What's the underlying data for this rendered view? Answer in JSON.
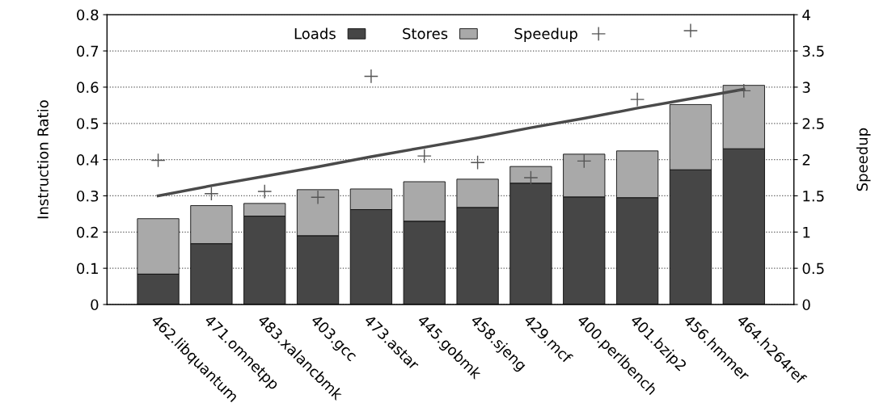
{
  "chart_data": {
    "type": "bar",
    "stacked": true,
    "ylabel": "Instruction Ratio",
    "y2label": "Speedup",
    "categories": [
      "462.libquantum",
      "471.omnetpp",
      "483.xalancbmk",
      "403.gcc",
      "473.astar",
      "445.gobmk",
      "458.sjeng",
      "429.mcf",
      "400.perlbench",
      "401.bzip2",
      "456.hmmer",
      "464.h264ref"
    ],
    "series": [
      {
        "name": "Loads",
        "color": "#464646",
        "values": [
          0.084,
          0.168,
          0.244,
          0.19,
          0.262,
          0.23,
          0.268,
          0.335,
          0.297,
          0.295,
          0.372,
          0.43
        ]
      },
      {
        "name": "Stores",
        "color": "#a9a9a9",
        "values": [
          0.153,
          0.105,
          0.035,
          0.127,
          0.057,
          0.109,
          0.078,
          0.046,
          0.118,
          0.129,
          0.18,
          0.175
        ]
      },
      {
        "name": "Speedup",
        "type": "scatter",
        "axis": "y2",
        "marker": "cross",
        "color": "#555555",
        "values": [
          1.99,
          1.53,
          1.56,
          1.48,
          3.15,
          2.05,
          1.96,
          1.75,
          1.98,
          2.83,
          3.78,
          2.95
        ]
      },
      {
        "type": "line",
        "axis": "y2",
        "color": "#4a4a4a",
        "values": [
          1.5,
          1.64,
          1.77,
          1.9,
          2.04,
          2.17,
          2.3,
          2.44,
          2.57,
          2.71,
          2.84,
          2.97
        ]
      }
    ],
    "ylim": [
      0,
      0.8
    ],
    "yticks": [
      0,
      0.1,
      0.2,
      0.3,
      0.4,
      0.5,
      0.6,
      0.7,
      0.8
    ],
    "y2lim": [
      0,
      4
    ],
    "y2ticks": [
      0,
      0.5,
      1,
      1.5,
      2,
      2.5,
      3,
      3.5,
      4
    ],
    "grid": "y",
    "legend": "top"
  }
}
